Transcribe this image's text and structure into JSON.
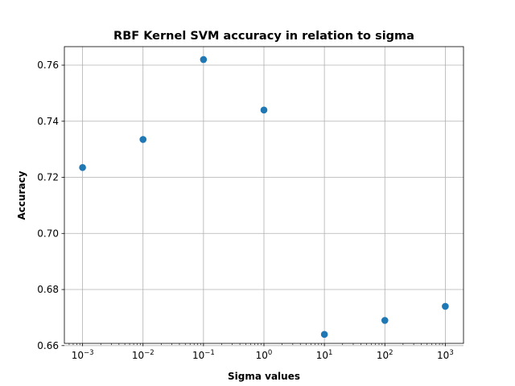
{
  "chart_data": {
    "type": "scatter",
    "title": "RBF Kernel SVM accuracy in relation to sigma",
    "xlabel": "Sigma values",
    "ylabel": "Accuracy",
    "x_scale": "log",
    "xlim": [
      0.0005,
      2000
    ],
    "ylim": [
      0.6608,
      0.7666
    ],
    "grid": true,
    "marker_color": "#1f77b4",
    "x_ticks": [
      {
        "value": 0.001,
        "base": "10",
        "exp": "−3"
      },
      {
        "value": 0.01,
        "base": "10",
        "exp": "−2"
      },
      {
        "value": 0.1,
        "base": "10",
        "exp": "−1"
      },
      {
        "value": 1,
        "base": "10",
        "exp": "0"
      },
      {
        "value": 10,
        "base": "10",
        "exp": "1"
      },
      {
        "value": 100,
        "base": "10",
        "exp": "2"
      },
      {
        "value": 1000,
        "base": "10",
        "exp": "3"
      }
    ],
    "y_ticks": [
      {
        "value": 0.66,
        "label": "0.66"
      },
      {
        "value": 0.68,
        "label": "0.68"
      },
      {
        "value": 0.7,
        "label": "0.70"
      },
      {
        "value": 0.72,
        "label": "0.72"
      },
      {
        "value": 0.74,
        "label": "0.74"
      },
      {
        "value": 0.76,
        "label": "0.76"
      }
    ],
    "points": [
      {
        "x": 0.001,
        "y": 0.7235
      },
      {
        "x": 0.01,
        "y": 0.7335
      },
      {
        "x": 0.1,
        "y": 0.762
      },
      {
        "x": 1,
        "y": 0.744
      },
      {
        "x": 10,
        "y": 0.664
      },
      {
        "x": 100,
        "y": 0.669
      },
      {
        "x": 1000,
        "y": 0.674
      }
    ]
  }
}
